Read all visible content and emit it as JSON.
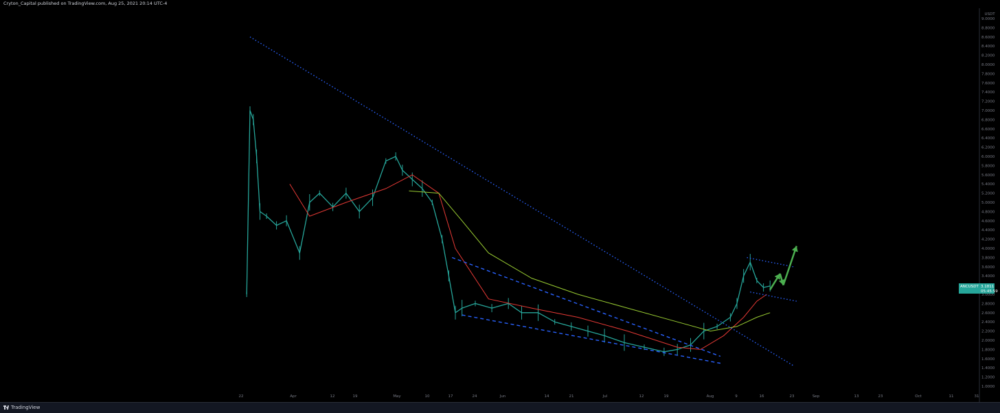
{
  "header": {
    "published_text": "Cryton_Capital published on TradingView.com, Aug 25, 2021 20:14 UTC-4"
  },
  "footer": {
    "brand_text": "TradingView"
  },
  "price_axis": {
    "unit_label": "USDT"
  },
  "price_badge": {
    "symbol": "ANCUSDT",
    "price": "3.1811",
    "countdown": "05:45:59"
  },
  "colors": {
    "candle": "#26a69a",
    "wick": "#26a69a",
    "ma_fast": "#e53935",
    "ma_slow": "#9acd32",
    "trendline": "#2962ff",
    "arrow": "#4caf50"
  },
  "chart_data": {
    "type": "line",
    "symbol": "ANCUSDT",
    "ylim": [
      1.0,
      9.0
    ],
    "ytick_labels": [
      "9.0000",
      "8.8000",
      "8.6000",
      "8.4000",
      "8.2000",
      "8.0000",
      "7.8000",
      "7.6000",
      "7.4000",
      "7.2000",
      "7.0000",
      "6.8000",
      "6.6000",
      "6.4000",
      "6.2000",
      "6.0000",
      "5.8000",
      "5.6000",
      "5.4000",
      "5.2000",
      "5.0000",
      "4.8000",
      "4.6000",
      "4.4000",
      "4.2000",
      "4.0000",
      "3.8000",
      "3.6000",
      "3.4000",
      "3.2000",
      "3.0000",
      "2.8000",
      "2.6000",
      "2.4000",
      "2.2000",
      "2.0000",
      "1.8000",
      "1.6000",
      "1.4000",
      "1.2000",
      "1.0000"
    ],
    "xtick_labels": [
      "22",
      "Apr",
      "12",
      "19",
      "May",
      "10",
      "17",
      "24",
      "Jun",
      "14",
      "21",
      "Jul",
      "12",
      "19",
      "Aug",
      "9",
      "16",
      "23",
      "Sep",
      "13",
      "23",
      "Oct",
      "11",
      "31"
    ],
    "series": [
      {
        "kind": "price",
        "x": [
          "Mar 20",
          "Mar 21",
          "Mar 22",
          "Mar 23",
          "Mar 24",
          "Mar 26",
          "Mar 29",
          "Apr 1",
          "Apr 5",
          "Apr 8",
          "Apr 11",
          "Apr 15",
          "Apr 19",
          "Apr 23",
          "Apr 27",
          "May 1",
          "May 4",
          "May 6",
          "May 9",
          "May 12",
          "May 15",
          "May 18",
          "May 20",
          "May 22",
          "May 24",
          "May 28",
          "Jun 2",
          "Jun 7",
          "Jun 11",
          "Jun 16",
          "Jun 21",
          "Jun 26",
          "Jul 1",
          "Jul 6",
          "Jul 12",
          "Jul 18",
          "Jul 24",
          "Jul 28",
          "Aug 1",
          "Aug 5",
          "Aug 9",
          "Aug 13",
          "Aug 15",
          "Aug 17",
          "Aug 19",
          "Aug 21",
          "Aug 23",
          "Aug 25"
        ],
        "values": [
          3.0,
          7.0,
          6.8,
          6.0,
          4.8,
          4.7,
          4.5,
          4.6,
          3.9,
          5.0,
          5.2,
          4.9,
          5.2,
          4.8,
          5.1,
          5.9,
          6.0,
          5.7,
          5.5,
          5.3,
          5.0,
          4.2,
          3.4,
          2.6,
          2.7,
          2.8,
          2.7,
          2.8,
          2.6,
          2.6,
          2.4,
          2.3,
          2.2,
          2.1,
          1.95,
          1.85,
          1.75,
          1.8,
          1.9,
          2.2,
          2.3,
          2.5,
          2.8,
          3.4,
          3.7,
          3.3,
          3.15,
          3.18
        ]
      },
      {
        "kind": "ma_fast",
        "x": [
          "Apr 2",
          "Apr 8",
          "Apr 19",
          "May 1",
          "May 9",
          "May 17",
          "May 22",
          "Jun 1",
          "Jun 14",
          "Jun 28",
          "Jul 13",
          "Jul 28",
          "Aug 4",
          "Aug 11",
          "Aug 17",
          "Aug 21",
          "Aug 24"
        ],
        "values": [
          5.4,
          4.7,
          5.0,
          5.3,
          5.6,
          5.2,
          4.0,
          2.9,
          2.7,
          2.5,
          2.2,
          1.85,
          1.8,
          2.1,
          2.5,
          2.85,
          3.0
        ]
      },
      {
        "kind": "ma_slow",
        "x": [
          "May 8",
          "May 17",
          "May 24",
          "Jun 1",
          "Jun 14",
          "Jun 28",
          "Jul 13",
          "Jul 28",
          "Aug 7",
          "Aug 15",
          "Aug 21",
          "Aug 25"
        ],
        "values": [
          5.25,
          5.2,
          4.6,
          3.9,
          3.35,
          3.0,
          2.7,
          2.4,
          2.2,
          2.3,
          2.5,
          2.6
        ]
      }
    ],
    "trendlines": [
      {
        "style": "dotted",
        "points": [
          [
            "Mar 21",
            8.6
          ],
          [
            "Sep 1",
            1.45
          ]
        ]
      },
      {
        "style": "dashed",
        "points": [
          [
            "May 21",
            3.8
          ],
          [
            "Aug 10",
            1.65
          ]
        ]
      },
      {
        "style": "dashed",
        "points": [
          [
            "May 24",
            2.55
          ],
          [
            "Aug 10",
            1.5
          ]
        ]
      },
      {
        "style": "dotted",
        "points": [
          [
            "Aug 18",
            3.8
          ],
          [
            "Sep 1",
            3.6
          ]
        ]
      },
      {
        "style": "dotted",
        "points": [
          [
            "Aug 19",
            3.05
          ],
          [
            "Sep 2",
            2.85
          ]
        ]
      }
    ],
    "arrows": [
      {
        "from": [
          "Aug 25",
          3.1
        ],
        "to": [
          "Aug 28",
          3.45
        ]
      },
      {
        "from": [
          "Aug 28",
          3.45
        ],
        "to": [
          "Aug 29",
          3.2
        ]
      },
      {
        "from": [
          "Aug 29",
          3.2
        ],
        "to": [
          "Sep 2",
          4.05
        ]
      }
    ],
    "grid": false
  }
}
